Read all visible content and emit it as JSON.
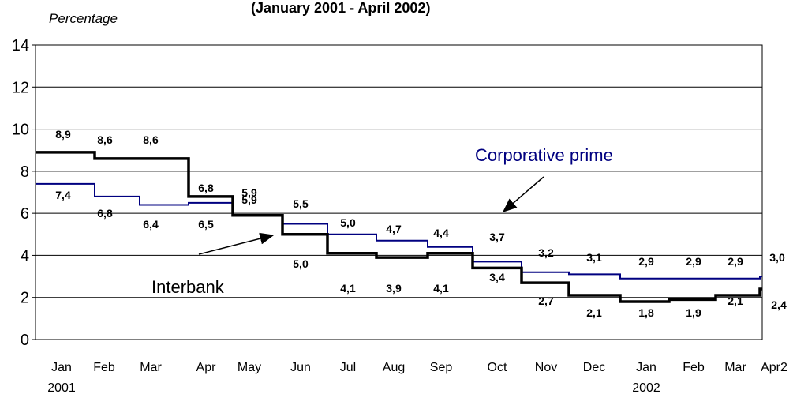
{
  "chart_data": {
    "type": "line",
    "title": "(January 2001 - April 2002)",
    "ylabel": "Percentage",
    "xlabel": "",
    "ylim": [
      0,
      14
    ],
    "yticks": [
      "0",
      "2",
      "4",
      "6",
      "8",
      "10",
      "12",
      "14"
    ],
    "grid": true,
    "categories": [
      "Jan",
      "Feb",
      "Mar",
      "Apr",
      "May",
      "Jun",
      "Jul",
      "Aug",
      "Sep",
      "Oct",
      "Nov",
      "Dec",
      "Jan",
      "Feb",
      "Mar",
      "Apr2"
    ],
    "year_labels": [
      {
        "index": 0,
        "text": "2001"
      },
      {
        "index": 12,
        "text": "2002"
      }
    ],
    "series": [
      {
        "name": "Interbank",
        "color": "#000000",
        "labels": [
          "8,9",
          "8,6",
          "8,6",
          "6,8",
          "5,9",
          "5,0",
          "4,1",
          "3,9",
          "4,1",
          "3,4",
          "2,7",
          "2,1",
          "1,8",
          "1,9",
          "2,1",
          "2,4"
        ],
        "values": [
          8.9,
          8.6,
          8.6,
          6.8,
          5.9,
          5.0,
          4.1,
          3.9,
          4.1,
          3.4,
          2.7,
          2.1,
          1.8,
          1.9,
          2.1,
          2.4
        ]
      },
      {
        "name": "Corporative prime",
        "color": "#000080",
        "labels": [
          "7,4",
          "6,8",
          "6,4",
          "6,5",
          "5,9",
          "5,5",
          "5,0",
          "4,7",
          "4,4",
          "3,7",
          "3,2",
          "3,1",
          "2,9",
          "2,9",
          "2,9",
          "3,0"
        ],
        "values": [
          7.4,
          6.8,
          6.4,
          6.5,
          5.9,
          5.5,
          5.0,
          4.7,
          4.4,
          3.7,
          3.2,
          3.1,
          2.9,
          2.9,
          2.9,
          3.0
        ]
      }
    ]
  }
}
